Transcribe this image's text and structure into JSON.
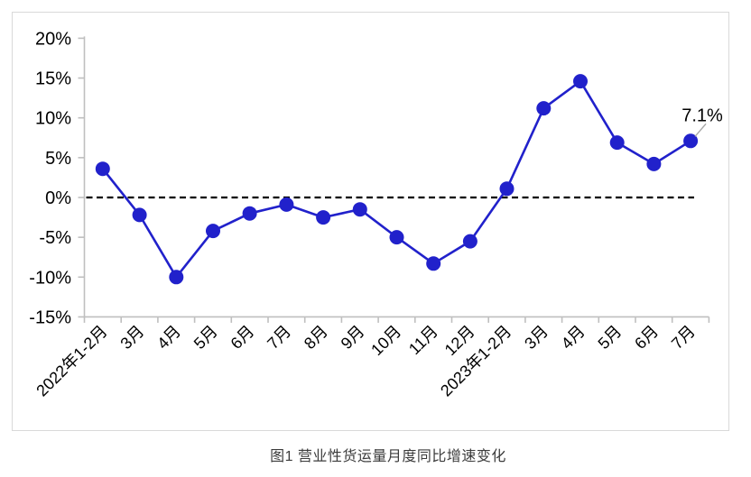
{
  "window": {
    "background_color": "#FFFFFF",
    "frame_border_color": "#D9D9D9"
  },
  "chart_data": {
    "type": "line",
    "title": "",
    "caption": "图1 营业性货运量月度同比增速变化",
    "categories": [
      "2022年1-2月",
      "3月",
      "4月",
      "5月",
      "6月",
      "7月",
      "8月",
      "9月",
      "10月",
      "11月",
      "12月",
      "2023年1-2月",
      "3月",
      "4月",
      "5月",
      "6月",
      "7月"
    ],
    "series": [
      {
        "name": "营业性货运量月度同比增速",
        "color": "#2121CB",
        "marker": "circle",
        "values": [
          3.6,
          -2.2,
          -10.0,
          -4.2,
          -2.0,
          -0.9,
          -2.5,
          -1.5,
          -5.0,
          -8.3,
          -5.5,
          1.1,
          11.2,
          14.6,
          6.9,
          4.2,
          7.1
        ]
      }
    ],
    "ylim": [
      -15,
      20
    ],
    "ytick_values": [
      20,
      15,
      10,
      5,
      0,
      -5,
      -10,
      -15
    ],
    "ytick_labels": [
      "20%",
      "15%",
      "10%",
      "5%",
      "0%",
      "-5%",
      "-10%",
      "-15%"
    ],
    "xlabel": "",
    "ylabel": "",
    "grid": false,
    "legend": "none",
    "zero_line": {
      "style": "dashed",
      "color": "#000000"
    },
    "axis_color": "#BFBFBF",
    "tick_label_color": "#000000",
    "annotation": {
      "text": "7.1%",
      "target_index": 16,
      "color": "#000000",
      "leader_color": "#A6A6A6"
    }
  }
}
